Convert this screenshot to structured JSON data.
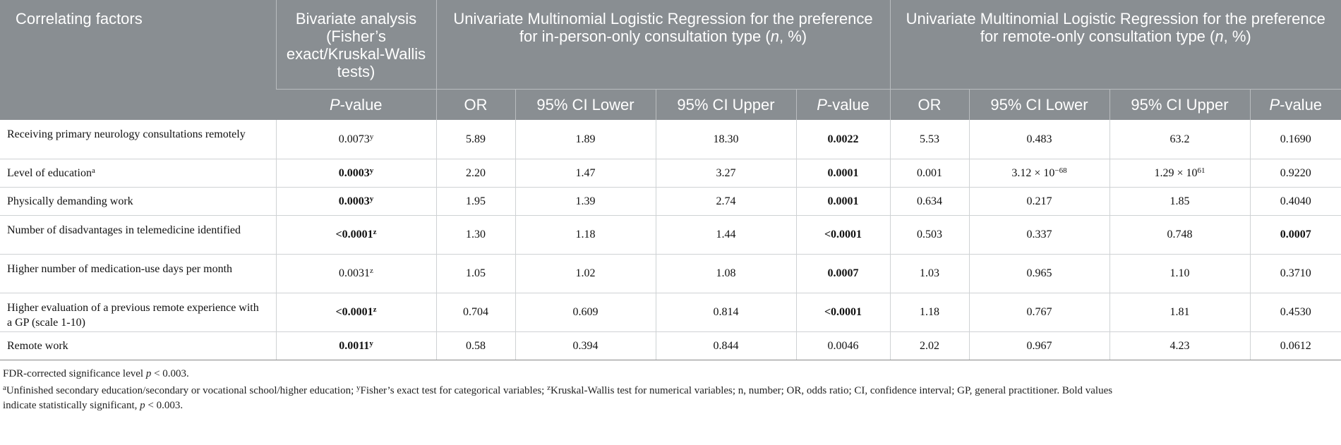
{
  "header": {
    "col0": "Correlating factors",
    "col1": "Bivariate analysis (Fisher’s exact/Kruskal-Wallis tests)",
    "group1_a": "Univariate Multinomial Logistic Regression for the preference for in-person-only consultation type (",
    "group1_n": "n",
    "group1_b": ", %)",
    "group2_a": "Univariate Multinomial Logistic Regression for the preference for remote-only consultation type (",
    "group2_n": "n",
    "group2_b": ", %)",
    "sub_p_italic": "P",
    "sub_p_rest": "-value",
    "sub_or": "OR",
    "sub_lower": "95% CI Lower",
    "sub_upper": "95% CI Upper"
  },
  "rows": [
    {
      "factor": "Receiving primary neurology consultations remotely",
      "sup": "",
      "p": "0.0073",
      "p_sup": "y",
      "or1": "5.89",
      "lo1": "1.89",
      "up1": "18.30",
      "p1": "0.0022",
      "or2": "5.53",
      "lo2": "0.483",
      "up2": "63.2",
      "p2": "0.1690"
    },
    {
      "factor": "Level of education",
      "sup": "a",
      "p": "0.0003",
      "p_sup": "y",
      "or1": "2.20",
      "lo1": "1.47",
      "up1": "3.27",
      "p1": "0.0001",
      "or2": "0.001",
      "lo2_base": "3.12 × 10",
      "lo2_exp": "−68",
      "up2_base": "1.29 × 10",
      "up2_exp": "61",
      "p2": "0.9220"
    },
    {
      "factor": "Physically demanding work",
      "sup": "",
      "p": "0.0003",
      "p_sup": "y",
      "or1": "1.95",
      "lo1": "1.39",
      "up1": "2.74",
      "p1": "0.0001",
      "or2": "0.634",
      "lo2": "0.217",
      "up2": "1.85",
      "p2": "0.4040"
    },
    {
      "factor": "Number of disadvantages in telemedicine identified",
      "sup": "",
      "p": "<0.0001",
      "p_sup": "z",
      "or1": "1.30",
      "lo1": "1.18",
      "up1": "1.44",
      "p1": "<0.0001",
      "or2": "0.503",
      "lo2": "0.337",
      "up2": "0.748",
      "p2": "0.0007"
    },
    {
      "factor": "Higher number of medication-use days per month",
      "sup": "",
      "p": "0.0031",
      "p_sup": "z",
      "or1": "1.05",
      "lo1": "1.02",
      "up1": "1.08",
      "p1": "0.0007",
      "or2": "1.03",
      "lo2": "0.965",
      "up2": "1.10",
      "p2": "0.3710"
    },
    {
      "factor": "Higher evaluation of a previous remote experience with a GP (scale 1-10)",
      "sup": "",
      "p": "<0.0001",
      "p_sup": "z",
      "or1": "0.704",
      "lo1": "0.609",
      "up1": "0.814",
      "p1": "<0.0001",
      "or2": "1.18",
      "lo2": "0.767",
      "up2": "1.81",
      "p2": "0.4530"
    },
    {
      "factor": "Remote work",
      "sup": "",
      "p": "0.0011",
      "p_sup": "y",
      "or1": "0.58",
      "lo1": "0.394",
      "up1": "0.844",
      "p1": "0.0046",
      "or2": "2.02",
      "lo2": "0.967",
      "up2": "4.23",
      "p2": "0.0612"
    }
  ],
  "footnotes": {
    "line1_a": "FDR-corrected significance level ",
    "line1_p": "p",
    "line1_b": " < 0.003.",
    "sup_a": "a",
    "note_a": "Unfinished secondary education/secondary or vocational school/higher education; ",
    "sup_y": "y",
    "note_y": "Fisher’s exact test for categorical variables; ",
    "sup_z": "z",
    "note_z": "Kruskal-Wallis test for numerical variables; n, number; OR, odds ratio; CI, confidence interval; GP, general practitioner. Bold values",
    "line3_a": "indicate statistically significant, ",
    "line3_p": "p",
    "line3_b": " < 0.003."
  }
}
